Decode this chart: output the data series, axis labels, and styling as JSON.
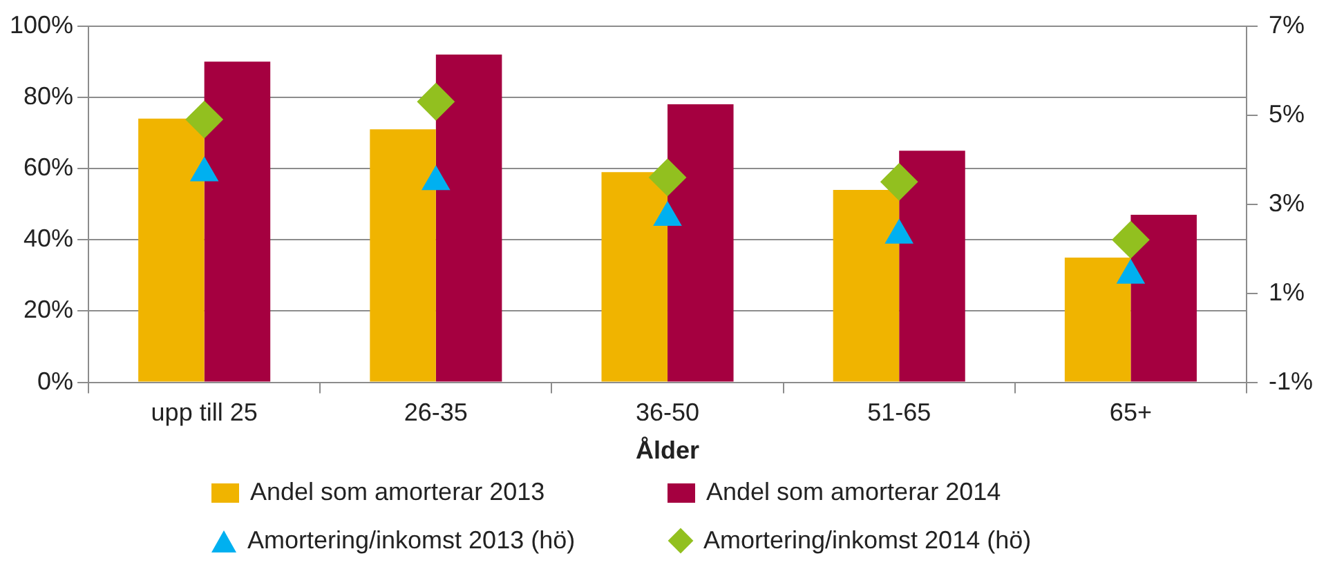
{
  "chart_data": {
    "type": "bar",
    "xlabel": "Ålder",
    "categories": [
      "upp till 25",
      "26-35",
      "36-50",
      "51-65",
      "65+"
    ],
    "series": [
      {
        "name": "Andel som amorterar 2013",
        "color": "#f0b400",
        "values": [
          74,
          71,
          59,
          54,
          35
        ]
      },
      {
        "name": "Andel som amorterar 2014",
        "color": "#a50040",
        "values": [
          90,
          92,
          78,
          65,
          47
        ]
      },
      {
        "name": "Amortering/inkomst 2013 (hö)",
        "type": "scatter",
        "axis": "y2",
        "marker": "triangle",
        "color": "#00b0f0",
        "x": [
          "upp till 25",
          "26-35",
          "36-50",
          "51-65",
          "65+"
        ],
        "values": [
          3.7,
          3.5,
          2.7,
          2.3,
          1.4
        ]
      },
      {
        "name": "Amortering/inkomst 2014 (hö)",
        "type": "scatter",
        "axis": "y2",
        "marker": "diamond",
        "color": "#92c01f",
        "x": [
          "upp till 25",
          "26-35",
          "36-50",
          "51-65",
          "65+"
        ],
        "values": [
          4.9,
          5.3,
          3.6,
          3.5,
          2.2
        ]
      }
    ],
    "ylim": [
      0,
      100
    ],
    "yticks": [
      {
        "value": 0,
        "label": "0%"
      },
      {
        "value": 20,
        "label": "20%"
      },
      {
        "value": 40,
        "label": "40%"
      },
      {
        "value": 60,
        "label": "60%"
      },
      {
        "value": 80,
        "label": "80%"
      },
      {
        "value": 100,
        "label": "100%"
      }
    ],
    "y2lim": [
      -1,
      7
    ],
    "y2ticks": [
      {
        "value": -1,
        "label": "-1%"
      },
      {
        "value": 1,
        "label": "1%"
      },
      {
        "value": 3,
        "label": "3%"
      },
      {
        "value": 5,
        "label": "5%"
      },
      {
        "value": 7,
        "label": "7%"
      }
    ],
    "grid": "y",
    "legend": "bottom"
  }
}
